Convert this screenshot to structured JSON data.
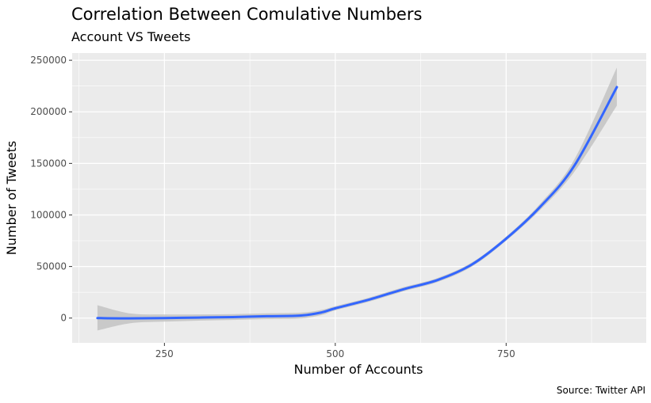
{
  "chart_data": {
    "type": "line",
    "title": "Correlation Between Comulative Numbers",
    "subtitle": "Account VS Tweets",
    "xlabel": "Number of Accounts",
    "ylabel": "Number of Tweets",
    "caption": "Source: Twitter API",
    "xlim": [
      115,
      955
    ],
    "ylim": [
      -24000,
      257000
    ],
    "x_ticks": [
      250,
      500,
      750
    ],
    "x_tick_labels": [
      "250",
      "500",
      "750"
    ],
    "x_minor_ticks": [
      125,
      375,
      625,
      875
    ],
    "y_ticks": [
      0,
      50000,
      100000,
      150000,
      200000,
      250000
    ],
    "y_tick_labels": [
      "0",
      "50000",
      "100000",
      "150000",
      "200000",
      "250000"
    ],
    "y_minor_ticks": [
      25000,
      75000,
      125000,
      175000,
      225000
    ],
    "grid": true,
    "panel_background": "#ebebeb",
    "grid_color": "#ffffff",
    "line_color": "#3366ff",
    "ribbon_color": "#c3c3c3",
    "series": [
      {
        "x": [
          152,
          200,
          250,
          300,
          350,
          400,
          450,
          480,
          500,
          550,
          600,
          650,
          700,
          750,
          800,
          850,
          912
        ],
        "y": [
          0,
          -300,
          0,
          500,
          1000,
          1800,
          2500,
          5500,
          9500,
          18000,
          28000,
          37000,
          52000,
          77000,
          108000,
          148000,
          224000
        ],
        "lower": [
          -12000,
          -5000,
          -3500,
          -2500,
          -1800,
          -1000,
          -300,
          3000,
          7500,
          16000,
          26000,
          35000,
          50000,
          75000,
          105000,
          142000,
          206000
        ],
        "upper": [
          12500,
          4500,
          3500,
          3500,
          3800,
          4600,
          5300,
          8000,
          11500,
          20000,
          30000,
          39000,
          54000,
          79000,
          111000,
          154000,
          243000
        ]
      }
    ]
  }
}
